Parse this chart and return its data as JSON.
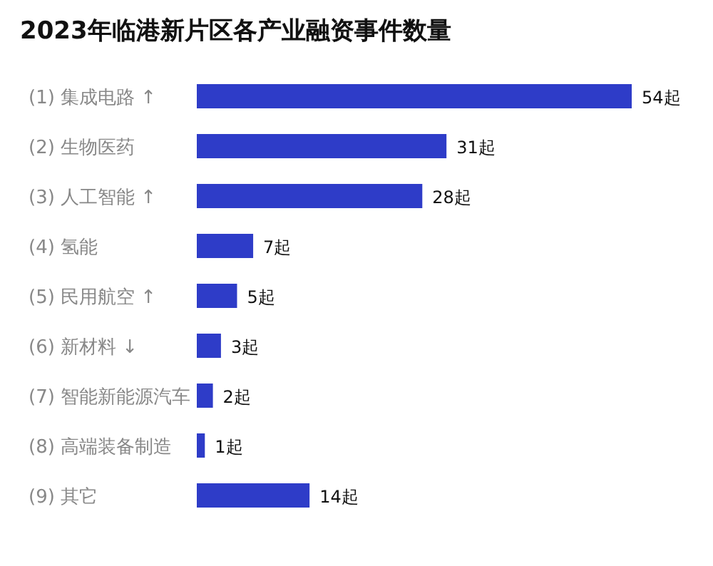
{
  "chart_data": {
    "type": "bar",
    "orientation": "horizontal",
    "title": "2023年临港新片区各产业融资事件数量",
    "categories": [
      "(1) 集成电路 ↑",
      "(2) 生物医药",
      "(3) 人工智能 ↑",
      "(4) 氢能",
      "(5) 民用航空 ↑",
      "(6) 新材料 ↓",
      "(7) 智能新能源汽车",
      "(8) 高端装备制造",
      "(9) 其它"
    ],
    "values": [
      54,
      31,
      28,
      7,
      5,
      3,
      2,
      1,
      14
    ],
    "value_labels": [
      "54起",
      "31起",
      "28起",
      "7起",
      "5起",
      "3起",
      "2起",
      "1起",
      "14起"
    ],
    "color": "#2e3cc8"
  }
}
